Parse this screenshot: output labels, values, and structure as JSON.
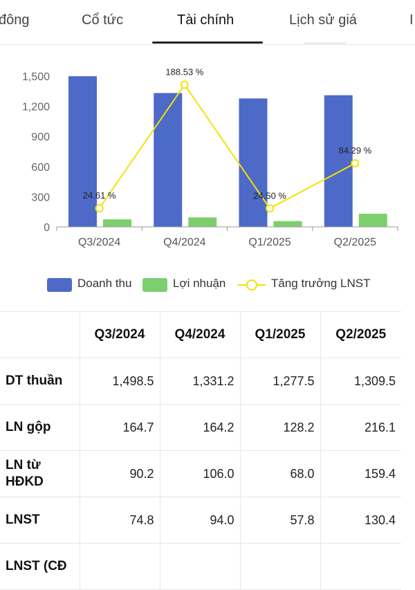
{
  "tabs": [
    {
      "label": "đông"
    },
    {
      "label": "Cổ tức"
    },
    {
      "label": "Tài chính"
    },
    {
      "label": "Lịch sử giá"
    },
    {
      "label": "I"
    }
  ],
  "active_tab": "Tài chính",
  "colors": {
    "revenue": "#4d6ac9",
    "profit": "#7dcf6e",
    "growth": "#f2e300"
  },
  "chart_data": {
    "type": "bar",
    "categories": [
      "Q3/2024",
      "Q4/2024",
      "Q1/2025",
      "Q2/2025"
    ],
    "series": [
      {
        "name": "Doanh thu",
        "type": "bar",
        "values": [
          1498.5,
          1331.2,
          1277.5,
          1309.5
        ]
      },
      {
        "name": "Lợi nhuận",
        "type": "bar",
        "values": [
          74.8,
          94.0,
          57.8,
          130.4
        ]
      },
      {
        "name": "Tăng trưởng LNST",
        "type": "line",
        "values": [
          24.61,
          188.53,
          24.5,
          84.29
        ],
        "labels": [
          "24.61 %",
          "188.53 %",
          "24.50 %",
          "84.29 %"
        ]
      }
    ],
    "yticks": [
      "0",
      "300",
      "600",
      "900",
      "1,200",
      "1,500"
    ],
    "ylim": [
      0,
      1500
    ],
    "line_ylim": [
      0,
      200
    ],
    "grid": false,
    "legend": "bottom"
  },
  "legend": {
    "revenue": "Doanh thu",
    "profit": "Lợi nhuận",
    "growth": "Tăng trưởng LNST"
  },
  "table": {
    "headers": [
      "",
      "Q3/2024",
      "Q4/2024",
      "Q1/2025",
      "Q2/2025"
    ],
    "rows": [
      {
        "label": "DT thuần",
        "values": [
          "1,498.5",
          "1,331.2",
          "1,277.5",
          "1,309.5"
        ]
      },
      {
        "label": "LN gộp",
        "values": [
          "164.7",
          "164.2",
          "128.2",
          "216.1"
        ]
      },
      {
        "label": "LN từ HĐKD",
        "values": [
          "90.2",
          "106.0",
          "68.0",
          "159.4"
        ]
      },
      {
        "label": "LNST",
        "values": [
          "74.8",
          "94.0",
          "57.8",
          "130.4"
        ]
      },
      {
        "label": "LNST (CĐ",
        "values": [
          "",
          "",
          "",
          ""
        ]
      }
    ]
  }
}
